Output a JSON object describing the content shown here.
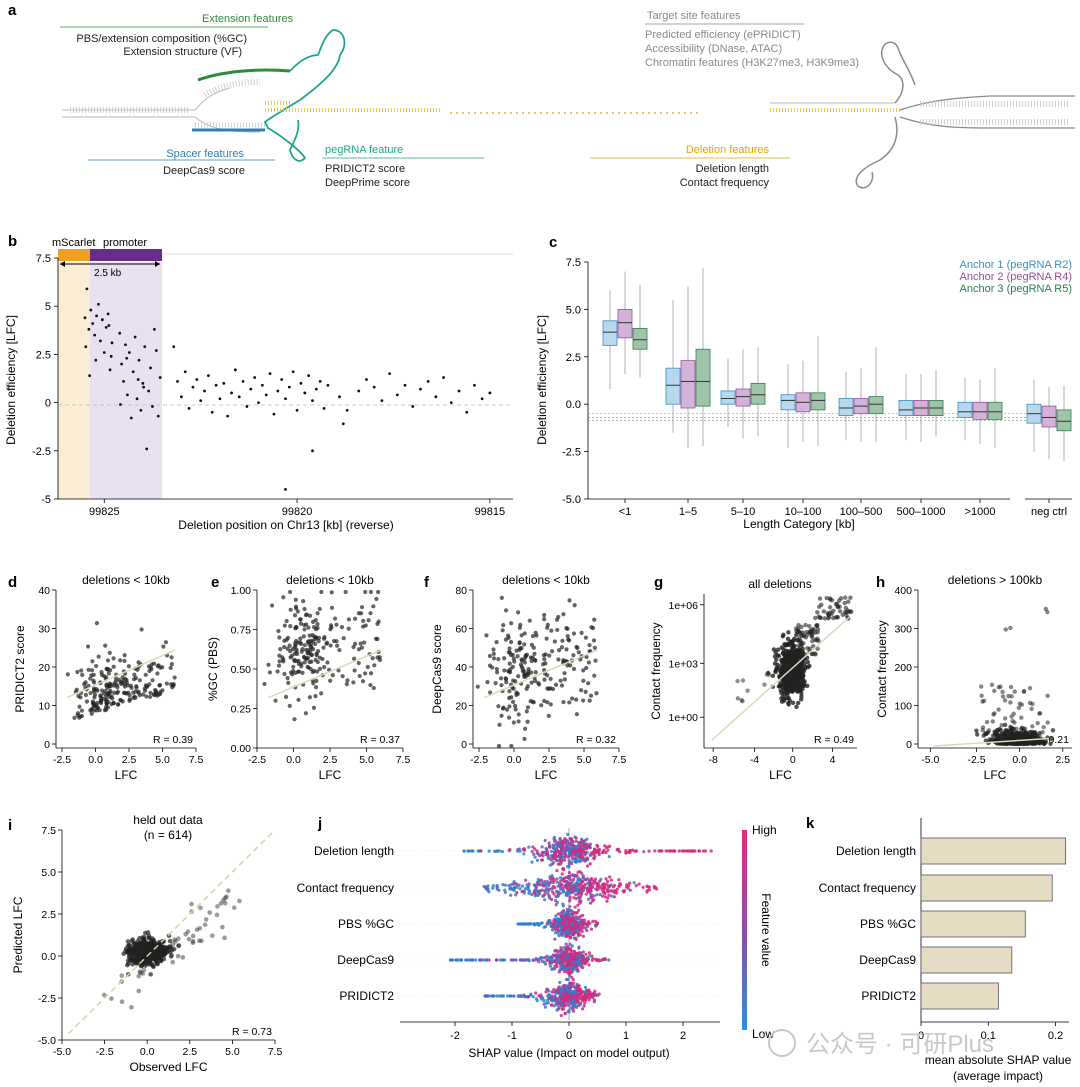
{
  "panel_a": {
    "letter": "a",
    "ext_title": "Extension features",
    "ext_l1": "PBS/extension composition (%GC)",
    "ext_l2": "Extension structure (VF)",
    "spacer_title": "Spacer features",
    "spacer_l1": "DeepCas9 score",
    "peg_title": "pegRNA feature",
    "peg_l1": "PRIDICT2 score",
    "peg_l2": "DeepPrime score",
    "del_title": "Deletion features",
    "del_l1": "Deletion length",
    "del_l2": "Contact frequency",
    "tgt_title": "Target site features",
    "tgt_l1": "Predicted efficiency (ePRIDICT)",
    "tgt_l2": "Accessibility (DNase, ATAC)",
    "tgt_l3": "Chromatin features (H3K27me3, H3K9me3)",
    "colors": {
      "ext": "#2e8b3a",
      "spacer": "#2f7fb5",
      "peg": "#1fa58f",
      "del": "#e8a400",
      "tgt": "#8a8a8a"
    }
  },
  "panel_b": {
    "letter": "b",
    "ylabel": "Deletion efficiency [LFC]",
    "xlabel": "Deletion position on Chr13 [kb] (reverse)",
    "yticks": [
      "7.5",
      "5",
      "2.5",
      "0",
      "-2.5",
      "-5"
    ],
    "xticks": [
      "99825",
      "99820",
      "99815"
    ],
    "label_mscarlet": "mScarlet",
    "label_promoter": "promoter",
    "label_span": "2.5 kb",
    "colors": {
      "mscarlet": "#f0a020",
      "promoter": "#6a2c8c"
    }
  },
  "panel_c": {
    "letter": "c",
    "ylabel": "Deletion efficiency [LFC]",
    "xlabel": "Length Category [kb]",
    "legend": [
      "Anchor 1 (pegRNA R2)",
      "Anchor 2 (pegRNA R4)",
      "Anchor 3 (pegRNA R5)"
    ],
    "colors": [
      "#3a8fc0",
      "#9b4b9b",
      "#2e7d4f"
    ]
  },
  "chart_data": [
    {
      "type": "scatter",
      "panel": "b",
      "title": "",
      "xlabel": "Deletion position on Chr13 [kb] (reverse)",
      "ylabel": "Deletion efficiency [LFC]",
      "xlim": [
        99826.2,
        99814.4
      ],
      "ylim": [
        -5,
        7.5
      ],
      "points": [
        [
          99825.5,
          4.4
        ],
        [
          99825.45,
          5.9
        ],
        [
          99825.4,
          3.8
        ],
        [
          99825.35,
          4.8
        ],
        [
          99825.3,
          4.1
        ],
        [
          99825.25,
          3.5
        ],
        [
          99825.2,
          4.5
        ],
        [
          99825.15,
          5.1
        ],
        [
          99825.1,
          3.2
        ],
        [
          99825.05,
          4.3
        ],
        [
          99825.0,
          2.6
        ],
        [
          99824.95,
          3.9
        ],
        [
          99824.9,
          4.6
        ],
        [
          99824.85,
          1.7
        ],
        [
          99824.8,
          3.1
        ],
        [
          99825.48,
          2.9
        ],
        [
          99825.38,
          1.4
        ],
        [
          99825.22,
          2.2
        ],
        [
          99824.88,
          4.0
        ],
        [
          99824.82,
          2.4
        ],
        [
          99824.6,
          3.6
        ],
        [
          99824.55,
          2.0
        ],
        [
          99824.5,
          1.1
        ],
        [
          99824.45,
          3.0
        ],
        [
          99824.4,
          0.4
        ],
        [
          99824.35,
          2.6
        ],
        [
          99824.3,
          -0.8
        ],
        [
          99824.25,
          1.6
        ],
        [
          99824.2,
          3.4
        ],
        [
          99824.15,
          0.2
        ],
        [
          99824.1,
          2.2
        ],
        [
          99824.05,
          -0.4
        ],
        [
          99824.0,
          1.0
        ],
        [
          99823.95,
          2.9
        ],
        [
          99823.9,
          -2.4
        ],
        [
          99823.85,
          0.6
        ],
        [
          99823.8,
          1.8
        ],
        [
          99823.75,
          -0.2
        ],
        [
          99823.7,
          3.8
        ],
        [
          99823.65,
          2.7
        ],
        [
          99823.6,
          -0.7
        ],
        [
          99823.55,
          1.3
        ],
        [
          99824.58,
          -0.1
        ],
        [
          99824.42,
          2.3
        ],
        [
          99824.12,
          1.2
        ],
        [
          99823.98,
          0.8
        ],
        [
          99823.2,
          2.9
        ],
        [
          99823.1,
          1.1
        ],
        [
          99823.0,
          0.3
        ],
        [
          99822.9,
          1.6
        ],
        [
          99822.8,
          -0.3
        ],
        [
          99822.7,
          0.8
        ],
        [
          99822.6,
          1.2
        ],
        [
          99822.5,
          0.1
        ],
        [
          99822.4,
          0.6
        ],
        [
          99822.3,
          1.4
        ],
        [
          99822.2,
          -0.5
        ],
        [
          99822.1,
          0.9
        ],
        [
          99822.0,
          0.2
        ],
        [
          99821.9,
          1.0
        ],
        [
          99821.8,
          -0.7
        ],
        [
          99821.7,
          0.5
        ],
        [
          99821.6,
          1.7
        ],
        [
          99821.5,
          0.3
        ],
        [
          99821.4,
          1.1
        ],
        [
          99821.3,
          -0.2
        ],
        [
          99821.2,
          0.7
        ],
        [
          99821.1,
          1.3
        ],
        [
          99821.0,
          0.0
        ],
        [
          99820.9,
          0.9
        ],
        [
          99820.8,
          0.4
        ],
        [
          99820.7,
          1.5
        ],
        [
          99820.6,
          -0.6
        ],
        [
          99820.5,
          0.6
        ],
        [
          99820.4,
          1.2
        ],
        [
          99820.3,
          0.2
        ],
        [
          99820.2,
          0.8
        ],
        [
          99820.1,
          1.6
        ],
        [
          99820.0,
          -0.4
        ],
        [
          99819.9,
          1.0
        ],
        [
          99819.8,
          0.5
        ],
        [
          99819.7,
          1.4
        ],
        [
          99819.6,
          0.1
        ],
        [
          99819.5,
          0.7
        ],
        [
          99819.4,
          1.1
        ],
        [
          99819.3,
          -0.3
        ],
        [
          99819.2,
          0.9
        ],
        [
          99820.3,
          -4.5
        ],
        [
          99819.6,
          -2.5
        ],
        [
          99818.9,
          0.3
        ],
        [
          99818.8,
          -1.1
        ],
        [
          99818.7,
          -0.4
        ],
        [
          99818.4,
          0.6
        ],
        [
          99818.2,
          1.2
        ],
        [
          99818.0,
          0.8
        ],
        [
          99817.8,
          0.1
        ],
        [
          99817.6,
          1.5
        ],
        [
          99817.4,
          0.4
        ],
        [
          99817.2,
          0.9
        ],
        [
          99817.0,
          -0.2
        ],
        [
          99816.8,
          0.7
        ],
        [
          99816.6,
          1.1
        ],
        [
          99816.4,
          0.3
        ],
        [
          99816.2,
          1.3
        ],
        [
          99816.0,
          0.0
        ],
        [
          99815.8,
          0.6
        ],
        [
          99815.6,
          -0.5
        ],
        [
          99815.4,
          0.9
        ],
        [
          99815.2,
          0.2
        ],
        [
          99815.0,
          0.5
        ]
      ]
    },
    {
      "type": "box",
      "panel": "c",
      "xlabel": "Length Category [kb]",
      "ylabel": "Deletion efficiency [LFC]",
      "ylim": [
        -5,
        7.5
      ],
      "categories": [
        "<1",
        "1–5",
        "5–10",
        "10–100",
        "100–500",
        "500–1000",
        ">1000",
        "neg ctrl"
      ],
      "series": [
        {
          "name": "Anchor 1 (pegRNA R2)",
          "boxes": [
            [
              0.8,
              3.1,
              3.8,
              4.4,
              6.0
            ],
            [
              -1.5,
              0.0,
              1.0,
              1.9,
              5.5
            ],
            [
              -1.2,
              0.0,
              0.3,
              0.7,
              2.4
            ],
            [
              -2.3,
              -0.3,
              0.2,
              0.5,
              2.1
            ],
            [
              -1.9,
              -0.6,
              -0.2,
              0.3,
              1.7
            ],
            [
              -1.9,
              -0.6,
              -0.3,
              0.2,
              1.6
            ],
            [
              -1.9,
              -0.7,
              -0.4,
              0.1,
              1.4
            ],
            [
              -2.5,
              -1.0,
              -0.5,
              0.0,
              1.3
            ]
          ]
        },
        {
          "name": "Anchor 2 (pegRNA R4)",
          "boxes": [
            [
              1.6,
              3.5,
              4.3,
              5.0,
              7.0
            ],
            [
              -2.3,
              -0.2,
              1.2,
              2.3,
              6.2
            ],
            [
              -1.8,
              -0.1,
              0.4,
              0.8,
              2.9
            ],
            [
              -2.0,
              -0.4,
              0.1,
              0.6,
              2.3
            ],
            [
              -2.0,
              -0.5,
              -0.1,
              0.3,
              1.9
            ],
            [
              -2.0,
              -0.6,
              -0.2,
              0.2,
              1.6
            ],
            [
              -2.1,
              -0.8,
              -0.4,
              0.1,
              1.3
            ],
            [
              -2.9,
              -1.2,
              -0.7,
              -0.1,
              0.9
            ]
          ]
        },
        {
          "name": "Anchor 3 (pegRNA R5)",
          "boxes": [
            [
              1.4,
              2.9,
              3.4,
              4.0,
              6.3
            ],
            [
              -2.2,
              -0.1,
              1.2,
              2.9,
              7.2
            ],
            [
              -1.7,
              0.0,
              0.5,
              1.1,
              3.0
            ],
            [
              -2.2,
              -0.3,
              0.2,
              0.6,
              3.6
            ],
            [
              -2.0,
              -0.5,
              0.0,
              0.4,
              3.0
            ],
            [
              -1.7,
              -0.6,
              -0.2,
              0.2,
              1.8
            ],
            [
              -2.3,
              -0.8,
              -0.4,
              0.1,
              1.9
            ],
            [
              -3.0,
              -1.4,
              -0.9,
              -0.3,
              1.0
            ]
          ]
        }
      ]
    },
    {
      "type": "scatter",
      "panel": "d",
      "title": "deletions < 10kb",
      "xlabel": "LFC",
      "ylabel": "PRIDICT2 score",
      "xlim": [
        -3.5,
        7.5
      ],
      "ylim": [
        0,
        40
      ],
      "xticks": [
        "-2.5",
        "0.0",
        "2.5",
        "5.0",
        "7.5"
      ],
      "yticks": [
        "0",
        "10",
        "20",
        "30",
        "40"
      ],
      "r_label": "R = 0.39"
    },
    {
      "type": "scatter",
      "panel": "e",
      "title": "deletions < 10kb",
      "xlabel": "LFC",
      "ylabel": "%GC (PBS)",
      "xlim": [
        -2.5,
        7.5
      ],
      "ylim": [
        0,
        1
      ],
      "xticks": [
        "-2.5",
        "0.0",
        "2.5",
        "5.0",
        "7.5"
      ],
      "yticks": [
        "0.00",
        "0.25",
        "0.50",
        "0.75",
        "1.00"
      ],
      "r_label": "R = 0.37"
    },
    {
      "type": "scatter",
      "panel": "f",
      "title": "deletions < 10kb",
      "xlabel": "LFC",
      "ylabel": "DeepCas9 score",
      "xlim": [
        -3.5,
        7.5
      ],
      "ylim": [
        0,
        80
      ],
      "xticks": [
        "-2.5",
        "0.0",
        "2.5",
        "5.0",
        "7.5"
      ],
      "yticks": [
        "0",
        "20",
        "40",
        "60",
        "80"
      ],
      "r_label": "R = 0.32"
    },
    {
      "type": "scatter",
      "panel": "g",
      "title": "all deletions",
      "xlabel": "LFC",
      "ylabel": "Contact frequency",
      "xlim": [
        -9,
        7
      ],
      "yscale": "log",
      "xticks": [
        "-8",
        "-4",
        "0",
        "4"
      ],
      "yticks": [
        "1e+00",
        "1e+03",
        "1e+06"
      ],
      "r_label": "R = 0.49"
    },
    {
      "type": "scatter",
      "panel": "h",
      "title": "deletions > 100kb",
      "xlabel": "LFC",
      "ylabel": "Contact frequency",
      "xlim": [
        -6,
        3
      ],
      "ylim": [
        0,
        400
      ],
      "xticks": [
        "-5.0",
        "-2.5",
        "0.0",
        "2.5"
      ],
      "yticks": [
        "0",
        "100",
        "200",
        "300",
        "400"
      ],
      "r_label": "R = 0.21"
    },
    {
      "type": "scatter",
      "panel": "i",
      "title": "held out data",
      "subtitle": "(n = 614)",
      "xlabel": "Observed LFC",
      "ylabel": "Predicted LFC",
      "xlim": [
        -5,
        7.5
      ],
      "ylim": [
        -5,
        7.5
      ],
      "xticks": [
        "-5.0",
        "-2.5",
        "0.0",
        "2.5",
        "5.0",
        "7.5"
      ],
      "yticks": [
        "-5.0",
        "-2.5",
        "0.0",
        "2.5",
        "5.0",
        "7.5"
      ],
      "r_label": "R = 0.73"
    },
    {
      "type": "beeswarm",
      "panel": "j",
      "xlabel": "SHAP value (Impact on model output)",
      "xticks": [
        "-2",
        "-1",
        "0",
        "1",
        "2"
      ],
      "features": [
        "Deletion length",
        "Contact frequency",
        "PBS %GC",
        "DeepCas9",
        "PRIDICT2"
      ],
      "colorbar": {
        "high": "High",
        "low": "Low",
        "label": "Feature value"
      }
    },
    {
      "type": "bar",
      "panel": "k",
      "orientation": "horizontal",
      "categories": [
        "Deletion length",
        "Contact frequency",
        "PBS %GC",
        "DeepCas9",
        "PRIDICT2"
      ],
      "values": [
        0.215,
        0.195,
        0.155,
        0.135,
        0.115
      ],
      "xlabel": "mean absolute SHAP value",
      "xlabel2": "(average impact)",
      "xticks": [
        "0",
        "0.1",
        "0.2"
      ],
      "xlim": [
        0,
        0.22
      ]
    }
  ],
  "letters": {
    "d": "d",
    "e": "e",
    "f": "f",
    "g": "g",
    "h": "h",
    "i": "i",
    "j": "j",
    "k": "k"
  },
  "watermark": "公众号 · 可研Plus"
}
